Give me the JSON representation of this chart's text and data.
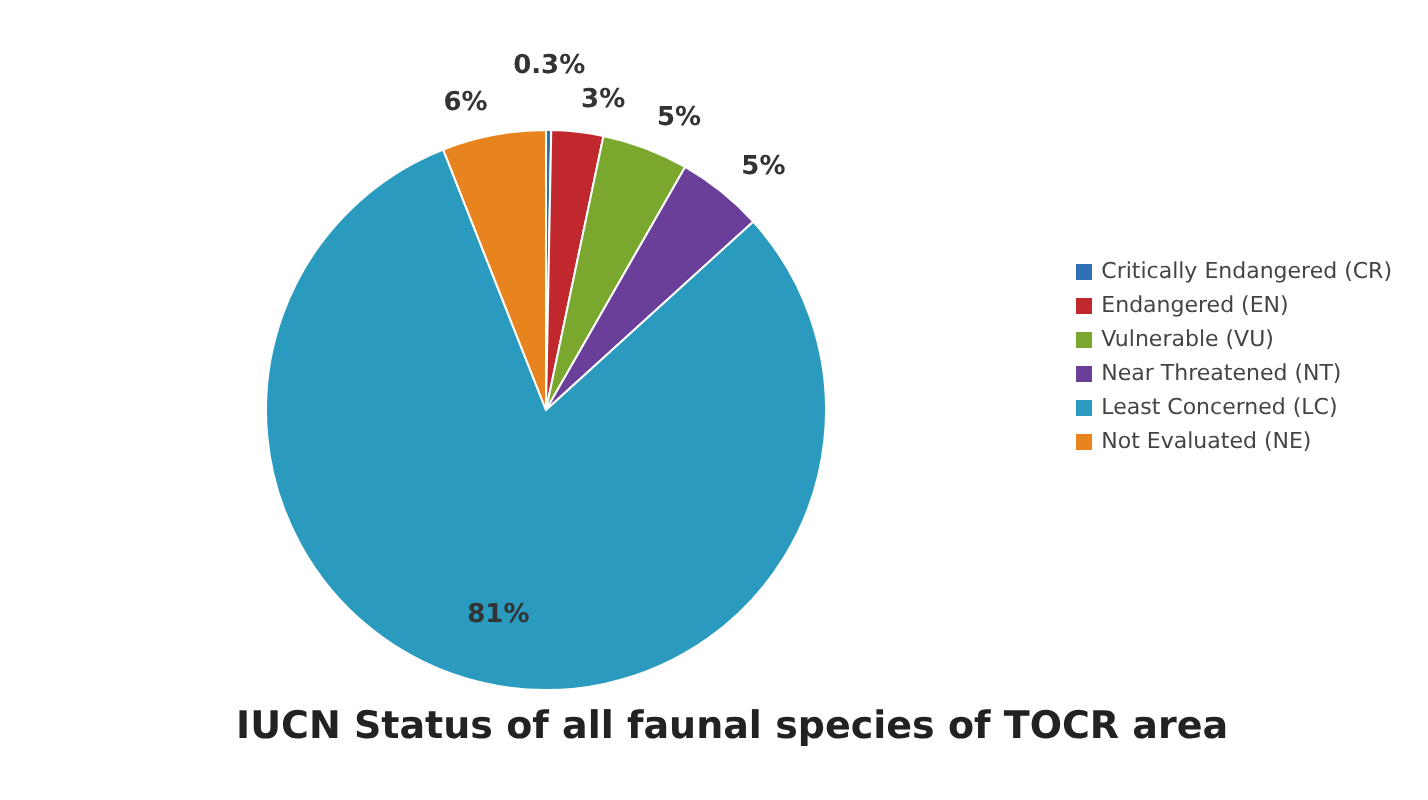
{
  "chart_data": {
    "type": "pie",
    "title": "IUCN Status of all faunal species of TOCR area",
    "categories": [
      "Critically Endangered (CR)",
      "Endangered (EN)",
      "Vulnerable (VU)",
      "Near Threatened (NT)",
      "Least Concerned (LC)",
      "Not Evaluated (NE)"
    ],
    "values": [
      0.3,
      3,
      5,
      5,
      81,
      6
    ],
    "colors": [
      "#2e6fb5",
      "#c0282d",
      "#7aa82e",
      "#6a3f9a",
      "#2a9bbf",
      "#e8841e"
    ],
    "value_labels": [
      "0.3%",
      "3%",
      "5%",
      "5%",
      "81%",
      "6%"
    ],
    "legend": "right"
  }
}
